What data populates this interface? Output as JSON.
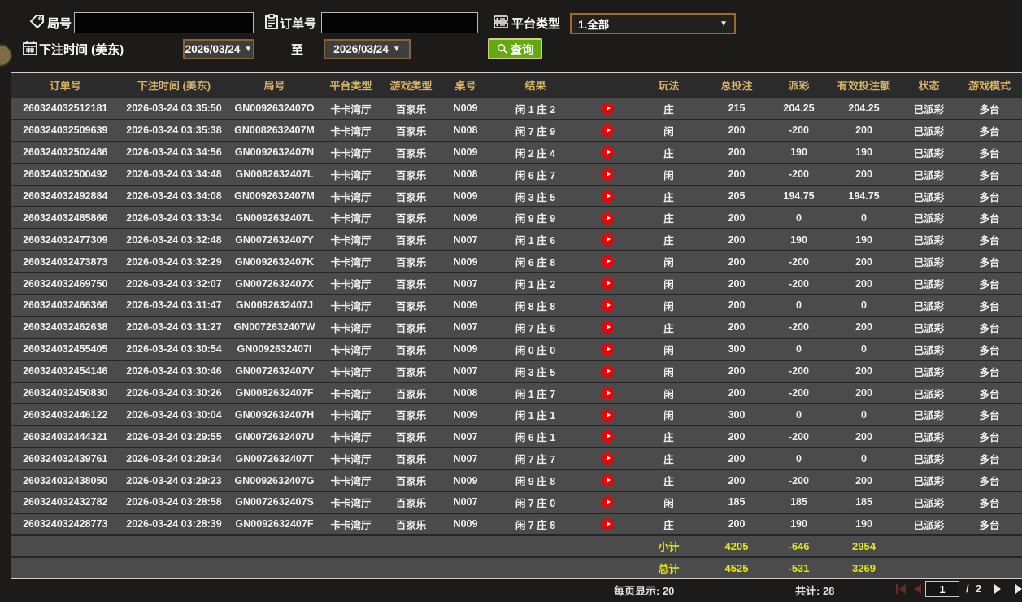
{
  "filters": {
    "round_label": "局号",
    "order_label": "订单号",
    "platform_label": "平台类型",
    "platform_value": "1.全部",
    "bet_time_label": "下注时间 (美东)",
    "date_from": "2026/03/24",
    "date_to": "2026/03/24",
    "to_label": "至",
    "search_label": "查询",
    "caret": "▼"
  },
  "table": {
    "columns": [
      "订单号",
      "下注时间 (美东)",
      "局号",
      "平台类型",
      "游戏类型",
      "桌号",
      "结果",
      "",
      "玩法",
      "总投注",
      "派彩",
      "有效投注额",
      "状态",
      "游戏模式"
    ],
    "rows": [
      {
        "order": "260324032512181",
        "time": "2026-03-24 03:35:50",
        "round": "GN0092632407O",
        "platform": "卡卡湾厅",
        "game": "百家乐",
        "table_no": "N009",
        "result": "闲 1 庄 2",
        "play": "庄",
        "total_bet": "215",
        "payout": "204.25",
        "payout_color": "pos",
        "valid_bet": "204.25",
        "status": "已派彩",
        "mode": "多台"
      },
      {
        "order": "260324032509639",
        "time": "2026-03-24 03:35:38",
        "round": "GN0082632407M",
        "platform": "卡卡湾厅",
        "game": "百家乐",
        "table_no": "N008",
        "result": "闲 7 庄 9",
        "play": "闲",
        "total_bet": "200",
        "payout": "-200",
        "payout_color": "neg",
        "valid_bet": "200",
        "status": "已派彩",
        "mode": "多台"
      },
      {
        "order": "260324032502486",
        "time": "2026-03-24 03:34:56",
        "round": "GN0092632407N",
        "platform": "卡卡湾厅",
        "game": "百家乐",
        "table_no": "N009",
        "result": "闲 2 庄 4",
        "play": "庄",
        "total_bet": "200",
        "payout": "190",
        "payout_color": "pos",
        "valid_bet": "190",
        "status": "已派彩",
        "mode": "多台"
      },
      {
        "order": "260324032500492",
        "time": "2026-03-24 03:34:48",
        "round": "GN0082632407L",
        "platform": "卡卡湾厅",
        "game": "百家乐",
        "table_no": "N008",
        "result": "闲 6 庄 7",
        "play": "闲",
        "total_bet": "200",
        "payout": "-200",
        "payout_color": "neg",
        "valid_bet": "200",
        "status": "已派彩",
        "mode": "多台"
      },
      {
        "order": "260324032492884",
        "time": "2026-03-24 03:34:08",
        "round": "GN0092632407M",
        "platform": "卡卡湾厅",
        "game": "百家乐",
        "table_no": "N009",
        "result": "闲 3 庄 5",
        "play": "庄",
        "total_bet": "205",
        "payout": "194.75",
        "payout_color": "pos",
        "valid_bet": "194.75",
        "status": "已派彩",
        "mode": "多台"
      },
      {
        "order": "260324032485866",
        "time": "2026-03-24 03:33:34",
        "round": "GN0092632407L",
        "platform": "卡卡湾厅",
        "game": "百家乐",
        "table_no": "N009",
        "result": "闲 9 庄 9",
        "play": "庄",
        "total_bet": "200",
        "payout": "0",
        "payout_color": "zero",
        "valid_bet": "0",
        "status": "已派彩",
        "mode": "多台"
      },
      {
        "order": "260324032477309",
        "time": "2026-03-24 03:32:48",
        "round": "GN0072632407Y",
        "platform": "卡卡湾厅",
        "game": "百家乐",
        "table_no": "N007",
        "result": "闲 1 庄 6",
        "play": "庄",
        "total_bet": "200",
        "payout": "190",
        "payout_color": "pos",
        "valid_bet": "190",
        "status": "已派彩",
        "mode": "多台"
      },
      {
        "order": "260324032473873",
        "time": "2026-03-24 03:32:29",
        "round": "GN0092632407K",
        "platform": "卡卡湾厅",
        "game": "百家乐",
        "table_no": "N009",
        "result": "闲 6 庄 8",
        "play": "闲",
        "total_bet": "200",
        "payout": "-200",
        "payout_color": "neg",
        "valid_bet": "200",
        "status": "已派彩",
        "mode": "多台"
      },
      {
        "order": "260324032469750",
        "time": "2026-03-24 03:32:07",
        "round": "GN0072632407X",
        "platform": "卡卡湾厅",
        "game": "百家乐",
        "table_no": "N007",
        "result": "闲 1 庄 2",
        "play": "闲",
        "total_bet": "200",
        "payout": "-200",
        "payout_color": "neg",
        "valid_bet": "200",
        "status": "已派彩",
        "mode": "多台"
      },
      {
        "order": "260324032466366",
        "time": "2026-03-24 03:31:47",
        "round": "GN0092632407J",
        "platform": "卡卡湾厅",
        "game": "百家乐",
        "table_no": "N009",
        "result": "闲 8 庄 8",
        "play": "闲",
        "total_bet": "200",
        "payout": "0",
        "payout_color": "zero",
        "valid_bet": "0",
        "status": "已派彩",
        "mode": "多台"
      },
      {
        "order": "260324032462638",
        "time": "2026-03-24 03:31:27",
        "round": "GN0072632407W",
        "platform": "卡卡湾厅",
        "game": "百家乐",
        "table_no": "N007",
        "result": "闲 7 庄 6",
        "play": "庄",
        "total_bet": "200",
        "payout": "-200",
        "payout_color": "neg",
        "valid_bet": "200",
        "status": "已派彩",
        "mode": "多台"
      },
      {
        "order": "260324032455405",
        "time": "2026-03-24 03:30:54",
        "round": "GN0092632407I",
        "platform": "卡卡湾厅",
        "game": "百家乐",
        "table_no": "N009",
        "result": "闲 0 庄 0",
        "play": "闲",
        "total_bet": "300",
        "payout": "0",
        "payout_color": "zero",
        "valid_bet": "0",
        "status": "已派彩",
        "mode": "多台"
      },
      {
        "order": "260324032454146",
        "time": "2026-03-24 03:30:46",
        "round": "GN0072632407V",
        "platform": "卡卡湾厅",
        "game": "百家乐",
        "table_no": "N007",
        "result": "闲 3 庄 5",
        "play": "闲",
        "total_bet": "200",
        "payout": "-200",
        "payout_color": "neg",
        "valid_bet": "200",
        "status": "已派彩",
        "mode": "多台"
      },
      {
        "order": "260324032450830",
        "time": "2026-03-24 03:30:26",
        "round": "GN0082632407F",
        "platform": "卡卡湾厅",
        "game": "百家乐",
        "table_no": "N008",
        "result": "闲 1 庄 7",
        "play": "闲",
        "total_bet": "200",
        "payout": "-200",
        "payout_color": "neg",
        "valid_bet": "200",
        "status": "已派彩",
        "mode": "多台"
      },
      {
        "order": "260324032446122",
        "time": "2026-03-24 03:30:04",
        "round": "GN0092632407H",
        "platform": "卡卡湾厅",
        "game": "百家乐",
        "table_no": "N009",
        "result": "闲 1 庄 1",
        "play": "闲",
        "total_bet": "300",
        "payout": "0",
        "payout_color": "zero",
        "valid_bet": "0",
        "status": "已派彩",
        "mode": "多台"
      },
      {
        "order": "260324032444321",
        "time": "2026-03-24 03:29:55",
        "round": "GN0072632407U",
        "platform": "卡卡湾厅",
        "game": "百家乐",
        "table_no": "N007",
        "result": "闲 6 庄 1",
        "play": "庄",
        "total_bet": "200",
        "payout": "-200",
        "payout_color": "neg",
        "valid_bet": "200",
        "status": "已派彩",
        "mode": "多台"
      },
      {
        "order": "260324032439761",
        "time": "2026-03-24 03:29:34",
        "round": "GN0072632407T",
        "platform": "卡卡湾厅",
        "game": "百家乐",
        "table_no": "N007",
        "result": "闲 7 庄 7",
        "play": "庄",
        "total_bet": "200",
        "payout": "0",
        "payout_color": "zero",
        "valid_bet": "0",
        "status": "已派彩",
        "mode": "多台"
      },
      {
        "order": "260324032438050",
        "time": "2026-03-24 03:29:23",
        "round": "GN0092632407G",
        "platform": "卡卡湾厅",
        "game": "百家乐",
        "table_no": "N009",
        "result": "闲 9 庄 8",
        "play": "庄",
        "total_bet": "200",
        "payout": "-200",
        "payout_color": "neg",
        "valid_bet": "200",
        "status": "已派彩",
        "mode": "多台"
      },
      {
        "order": "260324032432782",
        "time": "2026-03-24 03:28:58",
        "round": "GN0072632407S",
        "platform": "卡卡湾厅",
        "game": "百家乐",
        "table_no": "N007",
        "result": "闲 7 庄 0",
        "play": "闲",
        "total_bet": "185",
        "payout": "185",
        "payout_color": "pos",
        "valid_bet": "185",
        "status": "已派彩",
        "mode": "多台"
      },
      {
        "order": "260324032428773",
        "time": "2026-03-24 03:28:39",
        "round": "GN0092632407F",
        "platform": "卡卡湾厅",
        "game": "百家乐",
        "table_no": "N009",
        "result": "闲 7 庄 8",
        "play": "庄",
        "total_bet": "200",
        "payout": "190",
        "payout_color": "pos",
        "valid_bet": "190",
        "status": "已派彩",
        "mode": "多台"
      }
    ],
    "subtotal": {
      "label": "小计",
      "total_bet": "4205",
      "payout": "-646",
      "valid_bet": "2954"
    },
    "total": {
      "label": "总计",
      "total_bet": "4525",
      "payout": "-531",
      "valid_bet": "3269"
    }
  },
  "footer": {
    "per_page": "每页显示: 20",
    "total_count": "共计: 28",
    "page": "1",
    "page_sep": "/",
    "total_pages": "2"
  },
  "colors": {
    "accent_gold": "#d9b466",
    "payout_positive": "#c30d23",
    "payout_negative": "#35e015",
    "status_green": "#2fe00d",
    "summary_yellow": "#e6e613",
    "search_green": "#62aa10",
    "border_brown": "#8a6336"
  }
}
